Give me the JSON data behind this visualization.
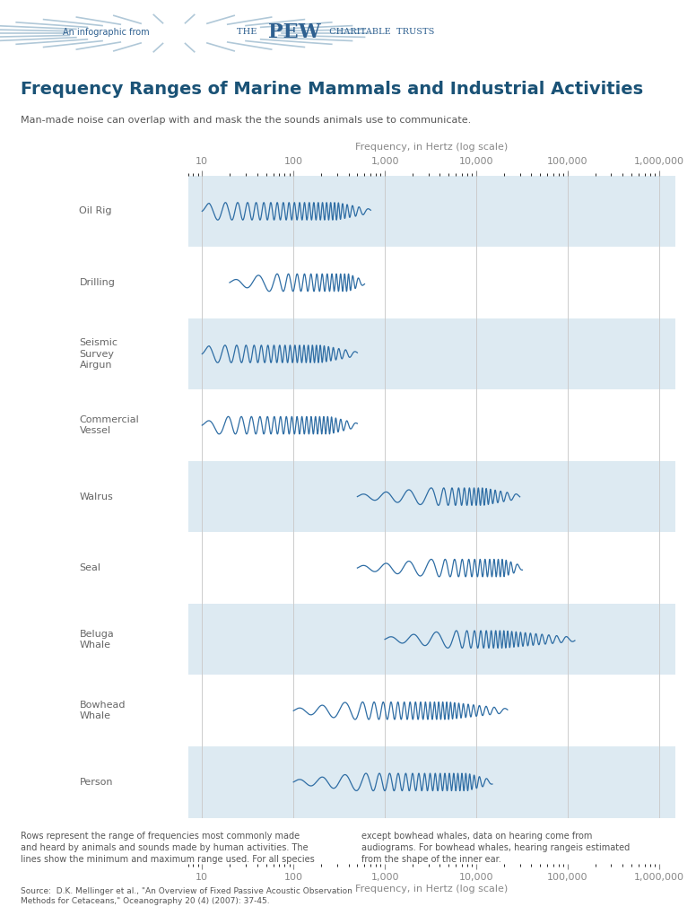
{
  "title": "Frequency Ranges of Marine Mammals and Industrial Activities",
  "subtitle": "Man-made noise can overlap with and mask the the sounds animals use to communicate.",
  "header_bg": "#ddeaf2",
  "pew_text": "An infographic from   THE  PEW  CHARITABLE TRUSTS",
  "freq_label": "Frequency, in Hertz (log scale)",
  "tick_labels": [
    "10",
    "100",
    "1,000",
    "10,000",
    "100,000",
    "1,000,000"
  ],
  "tick_values": [
    10,
    100,
    1000,
    10000,
    100000,
    1000000
  ],
  "xmin": 7,
  "xmax": 1500000,
  "rows": [
    {
      "label": "Person",
      "bg": "#ddeaf2",
      "freq_min": 100,
      "freq_max": 15000,
      "peak_min": 500,
      "peak_max": 8000,
      "wave_color": "#2e6da4",
      "wave_bg": "#a8c8e0"
    },
    {
      "label": "Bowhead\nWhale",
      "bg": "#ffffff",
      "freq_min": 100,
      "freq_max": 22000,
      "peak_min": 400,
      "peak_max": 5000,
      "wave_color": "#2e6da4",
      "wave_bg": "#a8c8e0"
    },
    {
      "label": "Beluga\nWhale",
      "bg": "#ddeaf2",
      "freq_min": 1000,
      "freq_max": 120000,
      "peak_min": 5000,
      "peak_max": 20000,
      "wave_color": "#2e6da4",
      "wave_bg": "#a8c8e0"
    },
    {
      "label": "Seal",
      "bg": "#ffffff",
      "freq_min": 500,
      "freq_max": 32000,
      "peak_min": 3000,
      "peak_max": 20000,
      "wave_color": "#2e6da4",
      "wave_bg": "#a8c8e0"
    },
    {
      "label": "Walrus",
      "bg": "#ddeaf2",
      "freq_min": 500,
      "freq_max": 30000,
      "peak_min": 3000,
      "peak_max": 12000,
      "wave_color": "#2e6da4",
      "wave_bg": "#a8c8e0"
    },
    {
      "label": "Commercial\nVessel",
      "bg": "#ffffff",
      "freq_min": 10,
      "freq_max": 500,
      "peak_min": 15,
      "peak_max": 250,
      "wave_color": "#2e6da4",
      "wave_bg": "#a8c8e0"
    },
    {
      "label": "Seismic\nSurvey\nAirgun",
      "bg": "#ddeaf2",
      "freq_min": 10,
      "freq_max": 500,
      "peak_min": 12,
      "peak_max": 200,
      "wave_color": "#2e6da4",
      "wave_bg": "#a8c8e0"
    },
    {
      "label": "Drilling",
      "bg": "#ffffff",
      "freq_min": 20,
      "freq_max": 600,
      "peak_min": 50,
      "peak_max": 400,
      "wave_color": "#2e6da4",
      "wave_bg": "#a8c8e0"
    },
    {
      "label": "Oil Rig",
      "bg": "#ddeaf2",
      "freq_min": 10,
      "freq_max": 700,
      "peak_min": 12,
      "peak_max": 300,
      "wave_color": "#2e6da4",
      "wave_bg": "#a8c8e0"
    }
  ],
  "footnote1": "Rows represent the range of frequencies most commonly made\nand heard by animals and sounds made by human activities. The\nlines show the minimum and maximum range used. For all species",
  "footnote2": "except bowhead whales, data on hearing come from\naudiograms. For bowhead whales, hearing rangeis estimated\nfrom the shape of the inner ear.",
  "source": "Source:  D.K. Mellinger et al., \"An Overview of Fixed Passive Acoustic Observation\nMethods for Cetaceans,\" Oceanography 20 (4) (2007): 37-45.",
  "title_color": "#1a5276",
  "subtitle_color": "#555555",
  "label_color": "#666666",
  "axis_color": "#888888",
  "grid_color": "#cccccc"
}
